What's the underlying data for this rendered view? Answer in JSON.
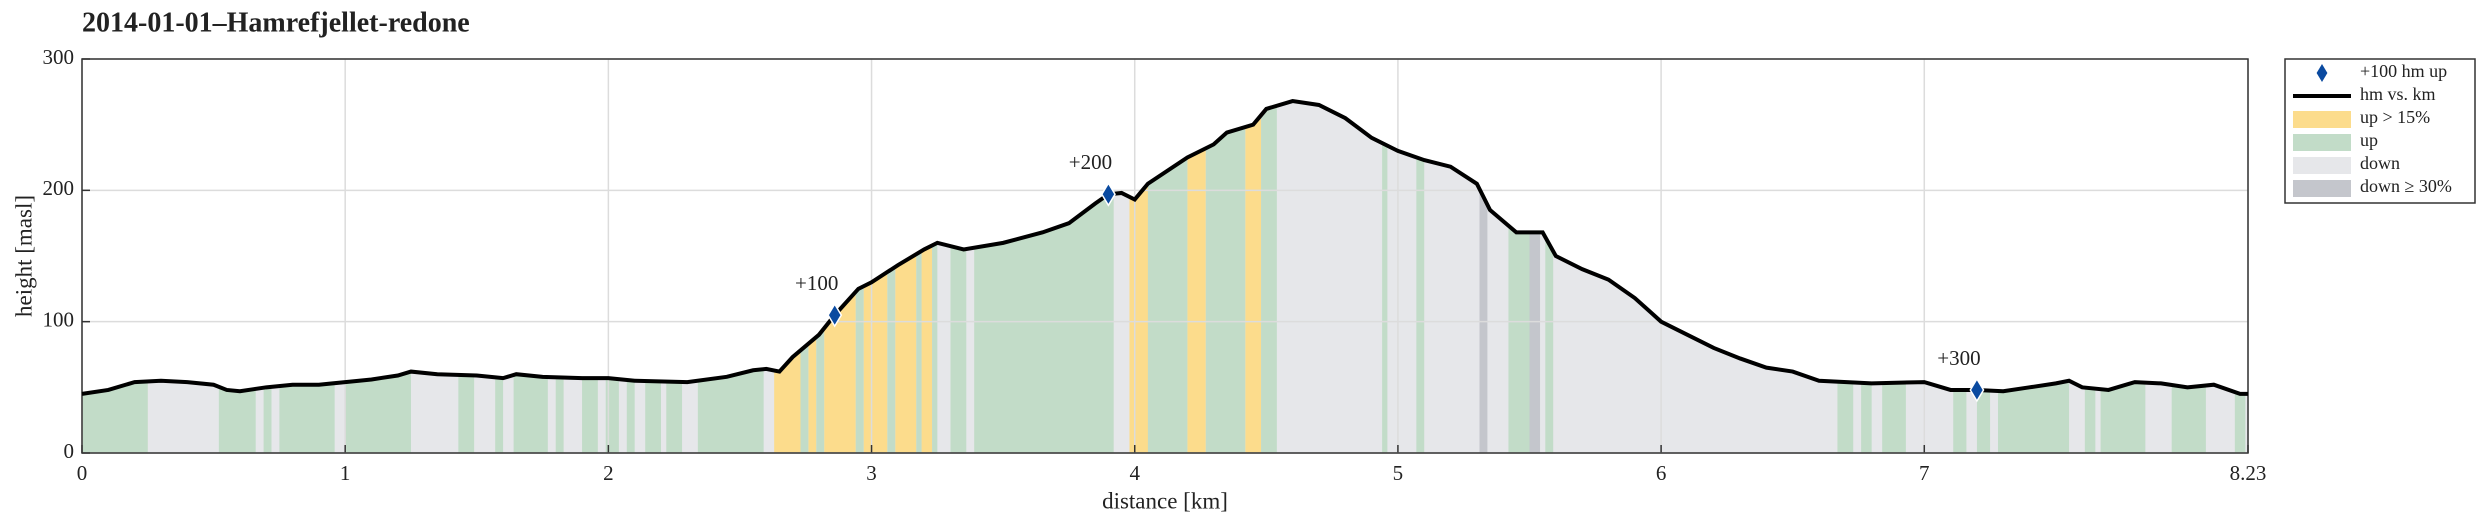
{
  "chart_data": {
    "type": "profile",
    "title": "2014-01-01–Hamrefjellet-redone",
    "xlabel": "distance [km]",
    "ylabel": "height [masl]",
    "xlim": [
      0,
      8.23
    ],
    "xticks": [
      0,
      1,
      2,
      3,
      4,
      5,
      6,
      7,
      8.23
    ],
    "ylim": [
      0,
      300
    ],
    "yticks": [
      0,
      100,
      200,
      300
    ],
    "grid": true,
    "legend": "outside right",
    "line": {
      "name": "hm vs. km",
      "color": "#000000",
      "x": [
        0,
        0.1,
        0.2,
        0.3,
        0.4,
        0.5,
        0.55,
        0.6,
        0.7,
        0.8,
        0.9,
        1.0,
        1.1,
        1.2,
        1.25,
        1.35,
        1.5,
        1.6,
        1.65,
        1.75,
        1.9,
        2.0,
        2.1,
        2.3,
        2.45,
        2.55,
        2.6,
        2.65,
        2.7,
        2.8,
        2.86,
        2.95,
        3.0,
        3.1,
        3.2,
        3.25,
        3.35,
        3.5,
        3.65,
        3.75,
        3.85,
        3.9,
        3.95,
        4.0,
        4.05,
        4.2,
        4.3,
        4.35,
        4.45,
        4.5,
        4.6,
        4.7,
        4.8,
        4.9,
        5.0,
        5.1,
        5.2,
        5.3,
        5.35,
        5.45,
        5.55,
        5.6,
        5.7,
        5.8,
        5.9,
        6.0,
        6.1,
        6.2,
        6.3,
        6.4,
        6.5,
        6.6,
        6.8,
        7.0,
        7.1,
        7.2,
        7.3,
        7.4,
        7.5,
        7.55,
        7.6,
        7.7,
        7.8,
        7.9,
        8.0,
        8.1,
        8.2,
        8.23
      ],
      "y": [
        45,
        48,
        54,
        55,
        54,
        52,
        48,
        47,
        50,
        52,
        52,
        54,
        56,
        59,
        62,
        60,
        59,
        57,
        60,
        58,
        57,
        57,
        55,
        54,
        58,
        63,
        64,
        62,
        73,
        90,
        105,
        125,
        130,
        143,
        155,
        160,
        155,
        160,
        168,
        175,
        190,
        197,
        198,
        193,
        205,
        225,
        235,
        244,
        250,
        262,
        268,
        265,
        255,
        240,
        230,
        223,
        218,
        205,
        185,
        168,
        168,
        150,
        140,
        132,
        118,
        100,
        90,
        80,
        72,
        65,
        62,
        55,
        53,
        54,
        48,
        48,
        47,
        50,
        53,
        55,
        50,
        48,
        54,
        53,
        50,
        52,
        45,
        45
      ]
    },
    "markers": {
      "name": "+100 hm up",
      "color": "#0a4aa0",
      "x": [
        2.86,
        3.9,
        7.2
      ],
      "y": [
        105,
        197,
        48
      ],
      "labels": [
        "+100",
        "+200",
        "+300"
      ]
    },
    "bands": [
      {
        "name": "up > 15%",
        "color": "#fcdc8c",
        "ranges": [
          [
            2.63,
            2.73
          ],
          [
            2.76,
            2.79
          ],
          [
            2.82,
            2.94
          ],
          [
            2.97,
            3.06
          ],
          [
            3.09,
            3.17
          ],
          [
            3.19,
            3.23
          ],
          [
            3.98,
            4.06
          ],
          [
            4.2,
            4.27
          ],
          [
            4.42,
            4.48
          ]
        ]
      },
      {
        "name": "up",
        "color": "#c2dcc8",
        "ranges": [
          [
            0,
            0.25
          ],
          [
            0.52,
            0.66
          ],
          [
            0.69,
            0.72
          ],
          [
            0.75,
            0.96
          ],
          [
            1.0,
            1.25
          ],
          [
            1.43,
            1.49
          ],
          [
            1.57,
            1.6
          ],
          [
            1.64,
            1.77
          ],
          [
            1.8,
            1.83
          ],
          [
            1.9,
            1.96
          ],
          [
            1.99,
            2.04
          ],
          [
            2.07,
            2.1
          ],
          [
            2.14,
            2.2
          ],
          [
            2.22,
            2.28
          ],
          [
            2.34,
            2.59
          ],
          [
            2.73,
            2.76
          ],
          [
            2.79,
            2.82
          ],
          [
            2.94,
            2.97
          ],
          [
            3.06,
            3.09
          ],
          [
            3.17,
            3.19
          ],
          [
            3.23,
            3.25
          ],
          [
            3.3,
            3.36
          ],
          [
            3.39,
            3.92
          ],
          [
            4.05,
            4.2
          ],
          [
            4.27,
            4.42
          ],
          [
            4.48,
            4.54
          ],
          [
            4.94,
            4.96
          ],
          [
            5.07,
            5.1
          ],
          [
            5.42,
            5.53
          ],
          [
            5.56,
            5.59
          ],
          [
            6.67,
            6.73
          ],
          [
            6.76,
            6.8
          ],
          [
            6.84,
            6.93
          ],
          [
            7.11,
            7.16
          ],
          [
            7.2,
            7.25
          ],
          [
            7.28,
            7.55
          ],
          [
            7.61,
            7.65
          ],
          [
            7.67,
            7.84
          ],
          [
            7.94,
            8.07
          ],
          [
            8.18,
            8.22
          ]
        ]
      },
      {
        "name": "down",
        "color": "#e6e7ea",
        "ranges": [
          [
            0,
            8.23
          ]
        ]
      },
      {
        "name": "down ≥ 30%",
        "color": "#c4c6cc",
        "ranges": [
          [
            5.31,
            5.34
          ],
          [
            5.5,
            5.54
          ]
        ]
      }
    ]
  }
}
